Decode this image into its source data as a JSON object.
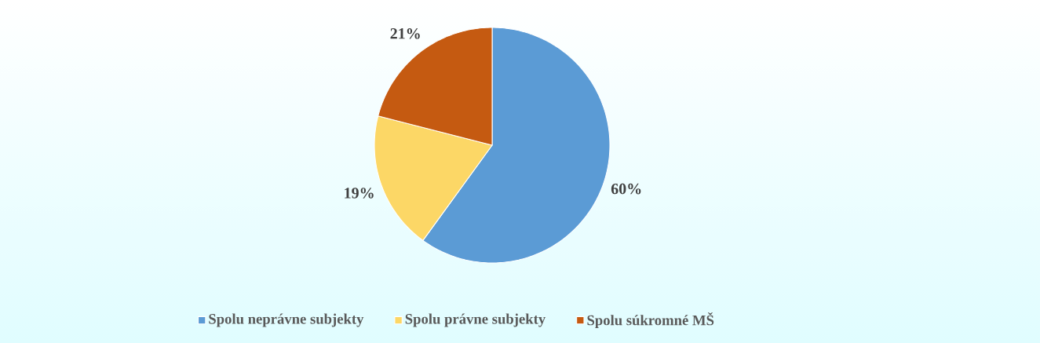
{
  "chart_data": {
    "type": "pie",
    "categories": [
      "Spolu neprávne subjekty",
      "Spolu právne subjekty",
      "Spolu súkromné MŠ"
    ],
    "values": [
      60,
      19,
      21
    ],
    "colors": [
      "#5b9bd5",
      "#fcd766",
      "#c55a11"
    ],
    "value_labels": [
      "60%",
      "19%",
      "21%"
    ],
    "legend": "bottom"
  }
}
